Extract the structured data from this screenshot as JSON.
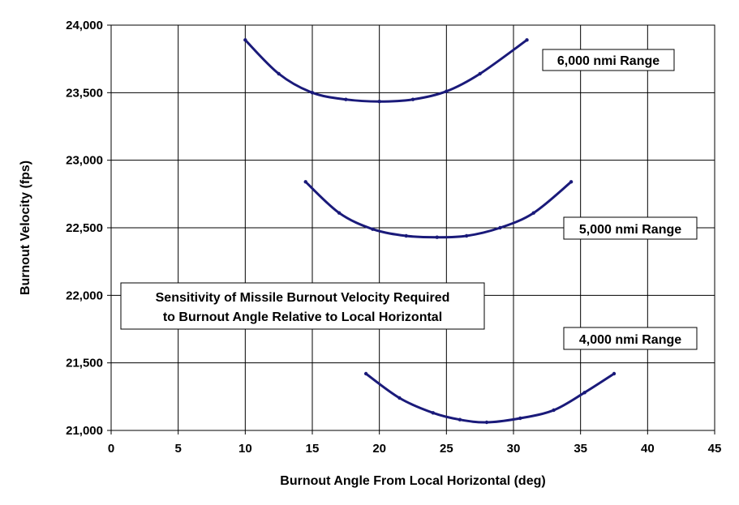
{
  "chart_data": {
    "type": "line",
    "title": "",
    "xlabel": "Burnout Angle From Local Horizontal (deg)",
    "ylabel": "Burnout Velocity (fps)",
    "xlim": [
      0,
      45
    ],
    "ylim": [
      21000,
      24000
    ],
    "xticks": [
      0,
      5,
      10,
      15,
      20,
      25,
      30,
      35,
      40,
      45
    ],
    "yticks": [
      21000,
      21500,
      22000,
      22500,
      23000,
      23500,
      24000
    ],
    "ytick_labels": [
      "21,000",
      "21,500",
      "22,000",
      "22,500",
      "23,000",
      "23,500",
      "24,000"
    ],
    "grid": true,
    "line_color": "#1a1a7a",
    "series": [
      {
        "label": "6,000 nmi Range",
        "x": [
          10,
          12.5,
          15,
          17.5,
          20,
          22.5,
          25,
          27.5,
          31
        ],
        "y": [
          23890,
          23640,
          23500,
          23450,
          23435,
          23450,
          23510,
          23640,
          23890
        ]
      },
      {
        "label": "5,000 nmi Range",
        "x": [
          14.5,
          17,
          19.5,
          22,
          24.3,
          26.5,
          29,
          31.5,
          34.3
        ],
        "y": [
          22840,
          22610,
          22490,
          22440,
          22430,
          22440,
          22500,
          22610,
          22840
        ]
      },
      {
        "label": "4,000 nmi Range",
        "x": [
          19,
          21.5,
          24,
          26,
          28,
          30.5,
          33,
          35.3,
          37.5
        ],
        "y": [
          21420,
          21240,
          21130,
          21080,
          21060,
          21090,
          21150,
          21280,
          21420
        ]
      }
    ],
    "annotations": [
      {
        "text": "6,000 nmi Range"
      },
      {
        "text": "5,000 nmi Range"
      },
      {
        "text": "4,000 nmi Range"
      },
      {
        "lines": [
          "Sensitivity of Missile Burnout Velocity Required",
          "to Burnout Angle Relative to Local Horizontal"
        ]
      }
    ]
  }
}
